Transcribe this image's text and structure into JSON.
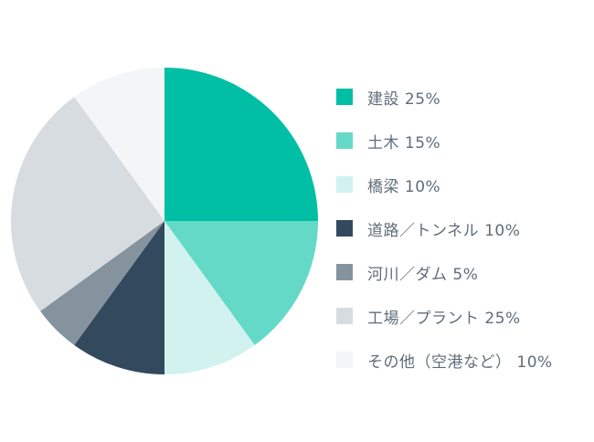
{
  "chart_data": {
    "type": "pie",
    "title": "",
    "start_angle_deg": 0,
    "direction": "clockwise",
    "legend_position": "right",
    "slices": [
      {
        "label": "建設 25%",
        "name": "建設",
        "value": 25,
        "color": "#00bfa5"
      },
      {
        "label": "土木 15%",
        "name": "土木",
        "value": 15,
        "color": "#64d9c8"
      },
      {
        "label": "橋梁 10%",
        "name": "橋梁",
        "value": 10,
        "color": "#d1f2ee"
      },
      {
        "label": "道路／トンネル 10%",
        "name": "道路／トンネル",
        "value": 10,
        "color": "#33495e"
      },
      {
        "label": "河川／ダム 5%",
        "name": "河川／ダム",
        "value": 5,
        "color": "#85939e"
      },
      {
        "label": "工場／プラント 25%",
        "name": "工場／プラント",
        "value": 25,
        "color": "#d7dce1"
      },
      {
        "label": "その他（空港など） 10%",
        "name": "その他（空港など）",
        "value": 10,
        "color": "#f3f5f7"
      }
    ]
  }
}
